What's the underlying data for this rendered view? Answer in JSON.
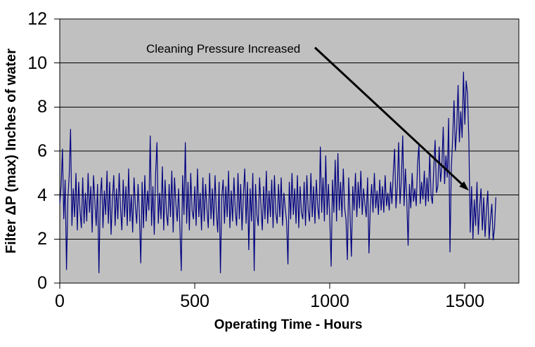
{
  "chart_data": {
    "type": "line",
    "title": "",
    "xlabel": "Operating Time - Hours",
    "ylabel": "Filter ΔP (max) Inches of water",
    "xlim": [
      0,
      1700
    ],
    "ylim": [
      0,
      12
    ],
    "x_ticks": [
      0,
      500,
      1000,
      1500
    ],
    "y_ticks": [
      0,
      2,
      4,
      6,
      8,
      10,
      12
    ],
    "grid": "horizontal-only",
    "legend": "none",
    "plot_bg_color": "#c0c0c0",
    "grid_color": "#000000",
    "annotation": {
      "text": "Cleaning Pressure Increased",
      "arrow_from": [
        945,
        10.7
      ],
      "arrow_to": [
        1515,
        4.2
      ]
    },
    "series": [
      {
        "name": "Filter ΔP (max)",
        "color": "#000080",
        "x_start": 0,
        "x_step": 5,
        "values": [
          3.6,
          4.4,
          6.1,
          2.9,
          4.7,
          0.6,
          3.8,
          4.9,
          7.0,
          2.6,
          4.3,
          3.0,
          5.0,
          2.4,
          4.6,
          3.3,
          2.5,
          4.8,
          2.7,
          4.1,
          2.8,
          5.0,
          3.2,
          4.4,
          2.3,
          4.9,
          3.7,
          2.6,
          4.5,
          0.45,
          3.9,
          4.8,
          2.5,
          4.2,
          3.1,
          5.1,
          2.7,
          4.6,
          2.2,
          3.8,
          4.9,
          2.6,
          4.3,
          2.9,
          5.0,
          3.4,
          2.4,
          4.7,
          3.0,
          4.4,
          2.6,
          5.2,
          2.8,
          4.0,
          2.3,
          4.8,
          3.5,
          2.7,
          4.5,
          3.1,
          0.9,
          4.6,
          2.5,
          4.9,
          2.8,
          4.2,
          3.3,
          6.7,
          2.6,
          4.4,
          2.2,
          5.0,
          6.4,
          2.7,
          4.1,
          2.9,
          5.3,
          2.4,
          4.7,
          3.2,
          2.6,
          4.5,
          3.0,
          5.1,
          2.3,
          4.8,
          3.6,
          2.8,
          4.3,
          2.5,
          0.55,
          4.9,
          3.1,
          6.4,
          2.7,
          4.6,
          2.4,
          5.0,
          3.3,
          2.9,
          4.4,
          2.6,
          5.2,
          3.0,
          4.1,
          2.4,
          4.8,
          2.8,
          4.5,
          3.4,
          2.5,
          5.0,
          2.9,
          4.3,
          2.6,
          4.9,
          3.2,
          2.3,
          4.6,
          0.45,
          3.9,
          4.7,
          2.7,
          4.4,
          3.0,
          5.1,
          2.5,
          4.2,
          2.8,
          4.8,
          3.3,
          2.6,
          5.0,
          2.9,
          4.5,
          2.4,
          4.0,
          5.2,
          2.7,
          4.6,
          1.5,
          4.3,
          2.8,
          5.0,
          0.55,
          4.5,
          3.1,
          2.6,
          4.8,
          3.5,
          2.4,
          4.4,
          2.9,
          5.1,
          2.7,
          4.2,
          3.0,
          4.7,
          2.5,
          4.9,
          3.2,
          2.7,
          4.5,
          3.0,
          4.8,
          2.6,
          4.1,
          3.4,
          2.8,
          0.85,
          4.6,
          2.9,
          5.0,
          3.1,
          4.3,
          2.7,
          4.9,
          2.5,
          4.4,
          3.2,
          2.9,
          4.6,
          2.6,
          4.9,
          3.3,
          2.8,
          5.0,
          3.0,
          4.4,
          2.7,
          4.7,
          3.5,
          2.9,
          6.2,
          3.2,
          4.8,
          2.8,
          5.8,
          3.1,
          4.5,
          2.9,
          0.75,
          4.7,
          3.2,
          5.6,
          2.8,
          5.9,
          3.3,
          4.6,
          3.0,
          5.2,
          3.4,
          2.9,
          1.05,
          4.8,
          3.1,
          1.2,
          4.4,
          3.3,
          5.0,
          3.0,
          4.6,
          3.4,
          5.1,
          3.1,
          4.3,
          3.6,
          3.0,
          4.8,
          1.35,
          3.5,
          4.5,
          3.2,
          5.0,
          3.4,
          4.2,
          3.1,
          4.7,
          3.3,
          4.4,
          3.2,
          4.9,
          3.5,
          4.1,
          3.3,
          4.6,
          3.6,
          5.0,
          6.1,
          3.4,
          4.4,
          6.4,
          3.6,
          4.7,
          6.7,
          3.5,
          5.2,
          3.8,
          1.7,
          4.5,
          3.4,
          5.0,
          3.7,
          4.3,
          3.5,
          5.4,
          6.3,
          3.6,
          4.6,
          3.8,
          5.1,
          3.5,
          4.8,
          3.7,
          5.9,
          4.0,
          3.6,
          5.2,
          6.5,
          4.1,
          4.4,
          6.2,
          4.6,
          5.3,
          7.1,
          4.5,
          5.8,
          4.8,
          7.5,
          1.4,
          5.2,
          6.6,
          8.3,
          6.0,
          7.0,
          9.0,
          6.4,
          7.8,
          6.6,
          9.6,
          7.2,
          9.2,
          8.6,
          6.5,
          2.3,
          4.4,
          2.0,
          3.8,
          2.6,
          4.6,
          2.2,
          3.5,
          4.3,
          2.4,
          3.9,
          2.1,
          3.3,
          4.2,
          2.0,
          2.9,
          3.6,
          1.95,
          2.5,
          3.9
        ]
      }
    ]
  }
}
